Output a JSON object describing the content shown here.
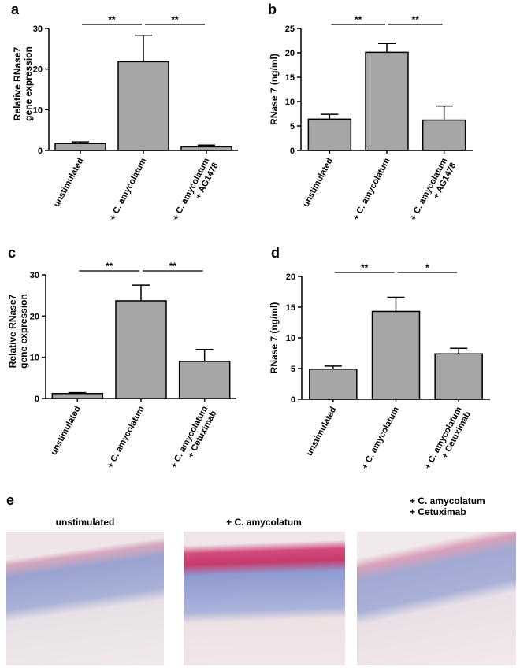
{
  "chart_data": [
    {
      "type": "bar",
      "panel": "a",
      "ylabel": "Relative RNase7\ngene expression",
      "categories": [
        "unstimulated",
        "+ C. amycolatum",
        "+ C. amycolatum\n+ AG1478"
      ],
      "values": [
        1.7,
        21.8,
        0.9
      ],
      "errors": [
        0.4,
        6.5,
        0.4
      ],
      "color": "#a6a6a6",
      "ylim": [
        0,
        30
      ],
      "yticks": [
        0,
        10,
        20,
        30
      ],
      "significance": [
        "**",
        "**"
      ]
    },
    {
      "type": "bar",
      "panel": "b",
      "ylabel": "RNase 7 (ng/ml)",
      "categories": [
        "unstimulated",
        "+ C. amycolatum",
        "+ C. amycolatum\n+ AG1478"
      ],
      "values": [
        6.4,
        20.1,
        6.2
      ],
      "errors": [
        1.0,
        1.8,
        2.9
      ],
      "color": "#a6a6a6",
      "ylim": [
        0,
        25
      ],
      "yticks": [
        0,
        5,
        10,
        15,
        20,
        25
      ],
      "significance": [
        "**",
        "**"
      ]
    },
    {
      "type": "bar",
      "panel": "c",
      "ylabel": "Relative RNase7\ngene expression",
      "categories": [
        "unstimulated",
        "+ C. amycolatum",
        "+ C. amycolatum\n+ Cetuximab"
      ],
      "values": [
        1.2,
        23.7,
        9.0
      ],
      "errors": [
        0.2,
        3.8,
        2.9
      ],
      "color": "#a6a6a6",
      "ylim": [
        0,
        30
      ],
      "yticks": [
        0,
        10,
        20,
        30
      ],
      "significance": [
        "**",
        "**"
      ]
    },
    {
      "type": "bar",
      "panel": "d",
      "ylabel": "RNase 7 (ng/ml)",
      "categories": [
        "unstimulated",
        "+ C. amycolatum",
        "+ C. amycolatum\n+ Cetuximab"
      ],
      "values": [
        4.9,
        14.3,
        7.4
      ],
      "errors": [
        0.5,
        2.3,
        0.9
      ],
      "color": "#a6a6a6",
      "ylim": [
        0,
        20
      ],
      "yticks": [
        0,
        5,
        10,
        15,
        20
      ],
      "significance": [
        "**",
        "*"
      ]
    }
  ],
  "panel_e": {
    "panel": "e",
    "labels": [
      "unstimulated",
      "+ C. amycolatum",
      "+ C. amycolatum\n+ Cetuximab"
    ]
  }
}
